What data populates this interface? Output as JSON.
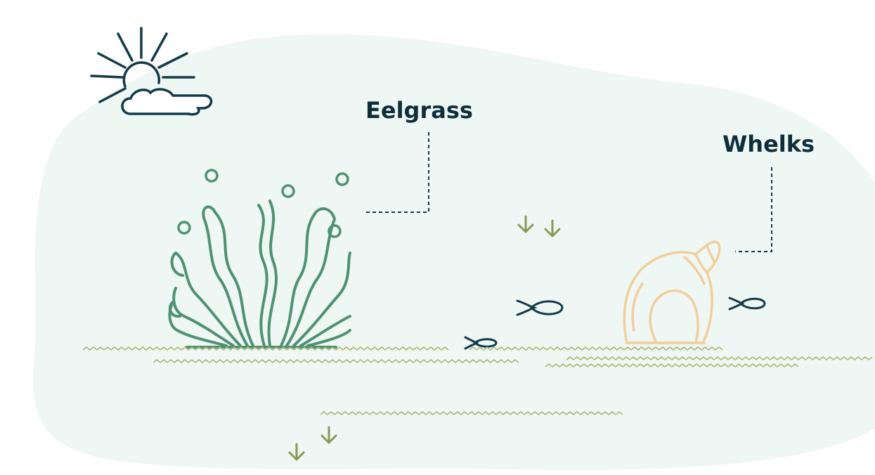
{
  "labels": {
    "eelgrass": "Eelgrass",
    "whelks": "Whelks"
  },
  "colors": {
    "background_blob": "#eef7f3",
    "label_text": "#0e2f3a",
    "dark_line": "#123a4a",
    "eelgrass": "#4e9273",
    "sand_lines": "#a9b874",
    "arrows": "#8a9a55",
    "shell": "#f0cf9d"
  },
  "icons": [
    "sun-cloud-icon",
    "eelgrass-icon",
    "whelk-shell-icon",
    "fish-icon",
    "down-arrow-icon"
  ]
}
